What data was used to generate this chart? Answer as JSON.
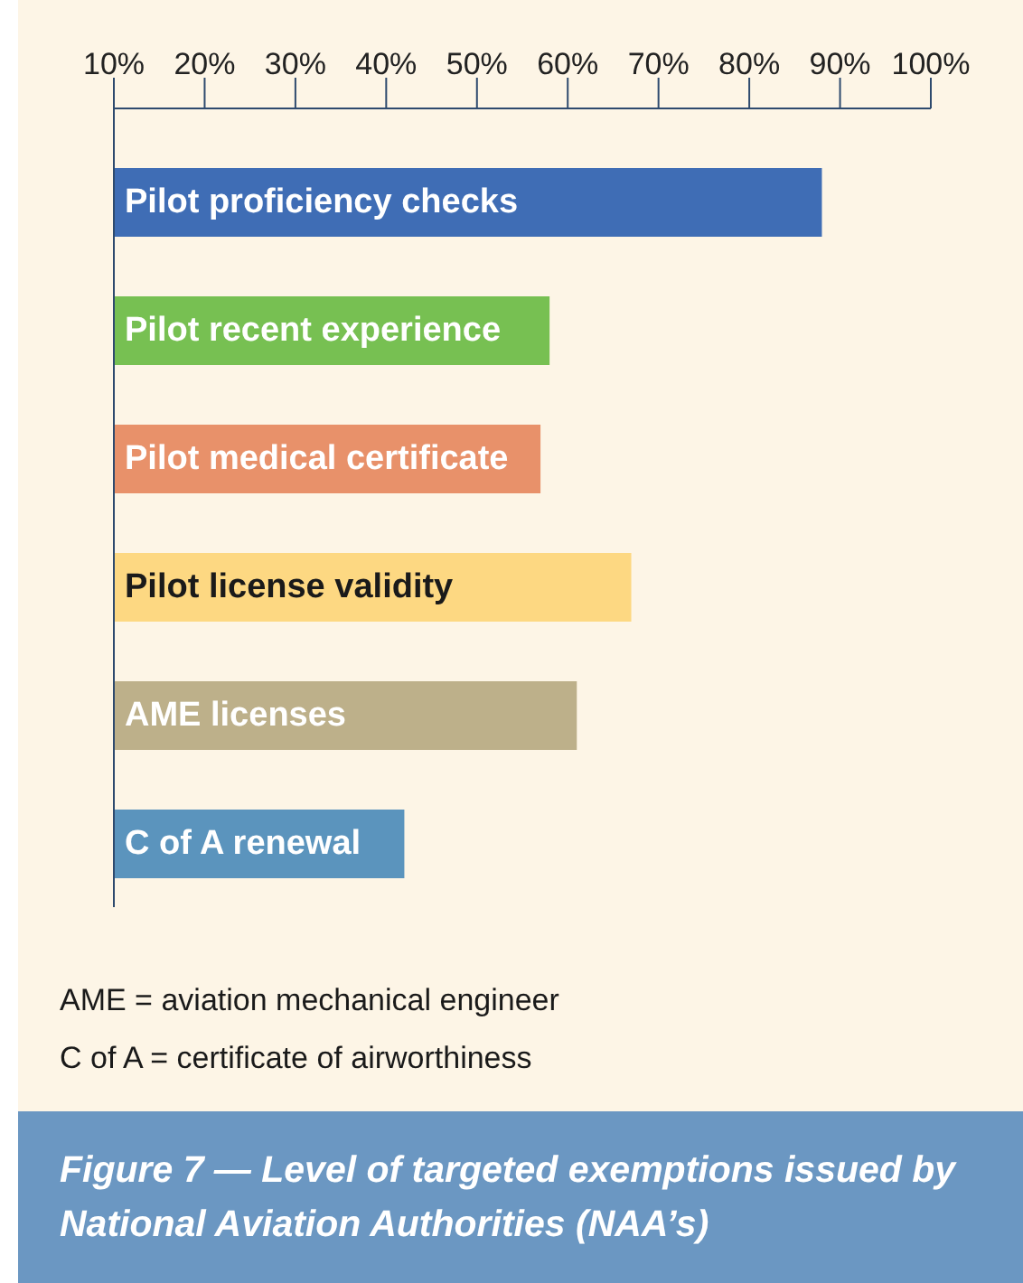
{
  "chart_data": {
    "type": "bar",
    "orientation": "horizontal",
    "title": "Figure 7 — Level of targeted exemptions issued by National Aviation Authorities (NAA’s)",
    "categories": [
      "Pilot proficiency checks",
      "Pilot recent experience",
      "Pilot medical certificate",
      "Pilot license validity",
      "AME licenses",
      "C of A renewal"
    ],
    "values": [
      88,
      58,
      57,
      67,
      61,
      42
    ],
    "colors": [
      "#3f6db5",
      "#77c052",
      "#e8916a",
      "#fdd882",
      "#bdb08a",
      "#5b94bd"
    ],
    "xlim": [
      10,
      100
    ],
    "xticks": [
      {
        "value": 10,
        "label": "10%"
      },
      {
        "value": 20,
        "label": "20%"
      },
      {
        "value": 30,
        "label": "30%"
      },
      {
        "value": 40,
        "label": "40%"
      },
      {
        "value": 50,
        "label": "50%"
      },
      {
        "value": 60,
        "label": "60%"
      },
      {
        "value": 70,
        "label": "70%"
      },
      {
        "value": 80,
        "label": "80%"
      },
      {
        "value": 90,
        "label": "90%"
      },
      {
        "value": 100,
        "label": "100%"
      }
    ],
    "annotations": [
      "AME = aviation mechanical engineer",
      "C of A = certificate of airworthiness"
    ]
  }
}
